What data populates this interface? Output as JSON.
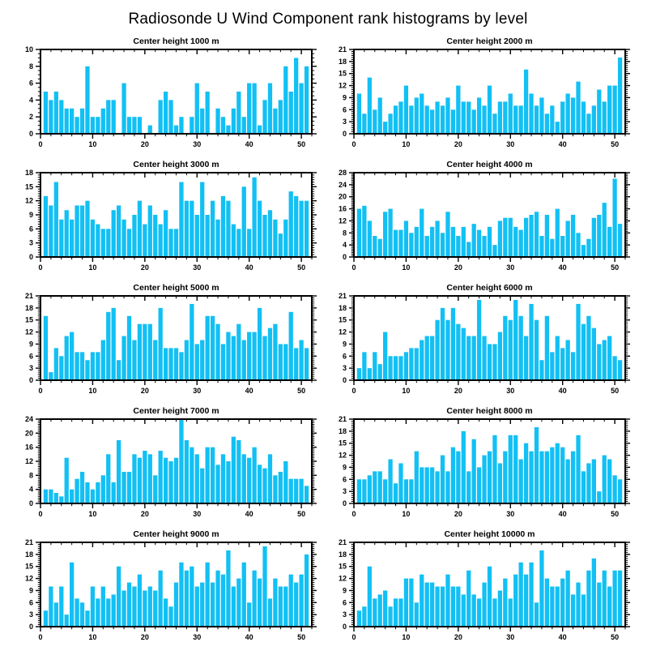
{
  "page_title": "Radiosonde U Wind Component rank histograms by level",
  "bar_color": "#12C0F4",
  "axis_color": "#000000",
  "chart_data": [
    {
      "type": "bar",
      "title": "Center height 1000 m",
      "xlabel": "",
      "ylabel": "",
      "grid": false,
      "xlim": [
        0,
        52
      ],
      "xticks": [
        0,
        10,
        20,
        30,
        40,
        50
      ],
      "ylim": [
        0,
        10
      ],
      "ytick_step": 2,
      "x_bins": 51,
      "values": [
        5,
        4,
        5,
        4,
        3,
        3,
        2,
        3,
        8,
        2,
        2,
        3,
        4,
        4,
        0,
        6,
        2,
        2,
        2,
        0,
        1,
        0,
        4,
        5,
        4,
        1,
        2,
        0,
        2,
        6,
        3,
        5,
        0,
        3,
        2,
        1,
        3,
        5,
        2,
        6,
        6,
        1,
        4,
        6,
        3,
        4,
        8,
        5,
        9,
        6,
        8
      ]
    },
    {
      "type": "bar",
      "title": "Center height 2000 m",
      "xlabel": "",
      "ylabel": "",
      "grid": false,
      "xlim": [
        0,
        52
      ],
      "xticks": [
        0,
        10,
        20,
        30,
        40,
        50
      ],
      "ylim": [
        0,
        21
      ],
      "ytick_step": 3,
      "x_bins": 51,
      "values": [
        10,
        5,
        14,
        6,
        9,
        3,
        5,
        7,
        8,
        12,
        7,
        9,
        10,
        7,
        6,
        8,
        7,
        9,
        6,
        12,
        8,
        8,
        6,
        9,
        7,
        12,
        5,
        8,
        8,
        10,
        7,
        7,
        16,
        10,
        7,
        9,
        5,
        7,
        3,
        8,
        10,
        9,
        13,
        8,
        5,
        7,
        11,
        8,
        12,
        12,
        19
      ]
    },
    {
      "type": "bar",
      "title": "Center height 3000 m",
      "xlabel": "",
      "ylabel": "",
      "grid": false,
      "xlim": [
        0,
        52
      ],
      "xticks": [
        0,
        10,
        20,
        30,
        40,
        50
      ],
      "ylim": [
        0,
        18
      ],
      "ytick_step": 3,
      "x_bins": 51,
      "values": [
        13,
        11,
        16,
        8,
        10,
        8,
        11,
        11,
        12,
        8,
        7,
        6,
        6,
        10,
        11,
        8,
        6,
        9,
        12,
        7,
        11,
        9,
        7,
        10,
        6,
        6,
        16,
        12,
        12,
        9,
        16,
        9,
        12,
        8,
        13,
        12,
        7,
        6,
        15,
        6,
        17,
        12,
        9,
        10,
        8,
        5,
        8,
        14,
        13,
        12,
        12
      ]
    },
    {
      "type": "bar",
      "title": "Center height 4000 m",
      "xlabel": "",
      "ylabel": "",
      "grid": false,
      "xlim": [
        0,
        52
      ],
      "xticks": [
        0,
        10,
        20,
        30,
        40,
        50
      ],
      "ylim": [
        0,
        28
      ],
      "ytick_step": 4,
      "x_bins": 51,
      "values": [
        16,
        17,
        12,
        7,
        6,
        15,
        16,
        9,
        9,
        12,
        8,
        10,
        16,
        7,
        10,
        12,
        8,
        15,
        10,
        7,
        10,
        5,
        11,
        9,
        7,
        10,
        4,
        12,
        13,
        13,
        10,
        9,
        13,
        14,
        15,
        7,
        14,
        6,
        16,
        7,
        12,
        14,
        8,
        4,
        6,
        13,
        14,
        18,
        10,
        26,
        11
      ]
    },
    {
      "type": "bar",
      "title": "Center height 5000 m",
      "xlabel": "",
      "ylabel": "",
      "grid": false,
      "xlim": [
        0,
        52
      ],
      "xticks": [
        0,
        10,
        20,
        30,
        40,
        50
      ],
      "ylim": [
        0,
        21
      ],
      "ytick_step": 3,
      "x_bins": 51,
      "values": [
        16,
        2,
        8,
        6,
        11,
        12,
        7,
        7,
        5,
        7,
        7,
        10,
        17,
        18,
        5,
        11,
        16,
        10,
        14,
        14,
        14,
        10,
        18,
        8,
        8,
        8,
        7,
        10,
        19,
        9,
        10,
        16,
        16,
        14,
        9,
        12,
        11,
        14,
        10,
        12,
        12,
        18,
        11,
        13,
        14,
        9,
        9,
        17,
        8,
        10,
        8
      ]
    },
    {
      "type": "bar",
      "title": "Center height 6000 m",
      "xlabel": "",
      "ylabel": "",
      "grid": false,
      "xlim": [
        0,
        52
      ],
      "xticks": [
        0,
        10,
        20,
        30,
        40,
        50
      ],
      "ylim": [
        0,
        21
      ],
      "ytick_step": 3,
      "x_bins": 51,
      "values": [
        3,
        7,
        3,
        7,
        4,
        12,
        6,
        6,
        6,
        7,
        8,
        8,
        10,
        11,
        11,
        15,
        18,
        15,
        18,
        14,
        13,
        11,
        11,
        20,
        11,
        9,
        9,
        12,
        16,
        15,
        20,
        16,
        11,
        19,
        15,
        5,
        16,
        7,
        11,
        8,
        10,
        7,
        19,
        14,
        16,
        13,
        9,
        10,
        11,
        6,
        5
      ]
    },
    {
      "type": "bar",
      "title": "Center height 7000 m",
      "xlabel": "",
      "ylabel": "",
      "grid": false,
      "xlim": [
        0,
        52
      ],
      "xticks": [
        0,
        10,
        20,
        30,
        40,
        50
      ],
      "ylim": [
        0,
        24
      ],
      "ytick_step": 4,
      "x_bins": 51,
      "values": [
        4,
        4,
        3,
        2,
        13,
        4,
        7,
        9,
        6,
        4,
        6,
        8,
        14,
        6,
        18,
        9,
        9,
        14,
        13,
        15,
        14,
        8,
        15,
        13,
        12,
        13,
        24,
        18,
        16,
        14,
        10,
        16,
        16,
        11,
        14,
        12,
        19,
        18,
        14,
        13,
        16,
        11,
        10,
        14,
        8,
        9,
        12,
        7,
        7,
        7,
        5
      ]
    },
    {
      "type": "bar",
      "title": "Center height 8000 m",
      "xlabel": "",
      "ylabel": "",
      "grid": false,
      "xlim": [
        0,
        52
      ],
      "xticks": [
        0,
        10,
        20,
        30,
        40,
        50
      ],
      "ylim": [
        0,
        21
      ],
      "ytick_step": 3,
      "x_bins": 51,
      "values": [
        6,
        6,
        7,
        8,
        8,
        6,
        11,
        5,
        10,
        6,
        6,
        13,
        9,
        9,
        9,
        8,
        12,
        8,
        14,
        13,
        18,
        8,
        16,
        9,
        12,
        13,
        17,
        10,
        13,
        17,
        17,
        11,
        15,
        13,
        19,
        13,
        13,
        14,
        15,
        14,
        11,
        13,
        17,
        8,
        10,
        11,
        3,
        12,
        11,
        7,
        6
      ]
    },
    {
      "type": "bar",
      "title": "Center height 9000 m",
      "xlabel": "",
      "ylabel": "",
      "grid": false,
      "xlim": [
        0,
        52
      ],
      "xticks": [
        0,
        10,
        20,
        30,
        40,
        50
      ],
      "ylim": [
        0,
        21
      ],
      "ytick_step": 3,
      "x_bins": 51,
      "values": [
        4,
        10,
        6,
        10,
        3,
        16,
        7,
        6,
        4,
        10,
        7,
        10,
        7,
        8,
        15,
        9,
        11,
        10,
        13,
        9,
        10,
        9,
        14,
        7,
        5,
        11,
        16,
        14,
        15,
        10,
        11,
        16,
        11,
        14,
        13,
        19,
        10,
        12,
        16,
        6,
        14,
        12,
        20,
        7,
        12,
        10,
        10,
        13,
        11,
        13,
        18
      ]
    },
    {
      "type": "bar",
      "title": "Center height 10000 m",
      "xlabel": "",
      "ylabel": "",
      "grid": false,
      "xlim": [
        0,
        52
      ],
      "xticks": [
        0,
        10,
        20,
        30,
        40,
        50
      ],
      "ylim": [
        0,
        21
      ],
      "ytick_step": 3,
      "x_bins": 51,
      "values": [
        4,
        5,
        15,
        7,
        8,
        9,
        5,
        7,
        7,
        12,
        12,
        6,
        13,
        11,
        11,
        10,
        10,
        13,
        10,
        10,
        8,
        14,
        8,
        7,
        11,
        15,
        7,
        9,
        12,
        7,
        13,
        16,
        13,
        16,
        6,
        19,
        12,
        10,
        10,
        12,
        14,
        8,
        11,
        8,
        14,
        17,
        11,
        14,
        10,
        14,
        14
      ]
    }
  ]
}
